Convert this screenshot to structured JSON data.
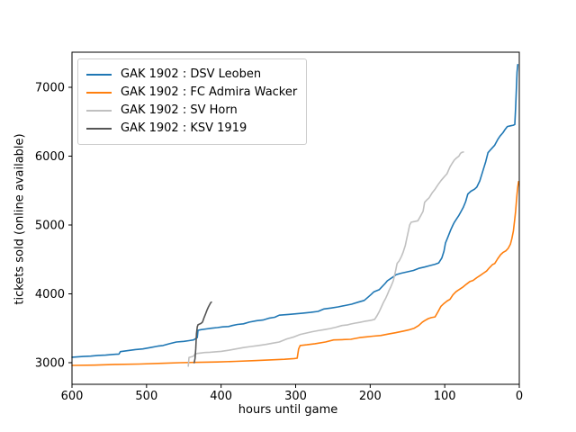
{
  "chart_data": {
    "type": "line",
    "title": "",
    "xlabel": "hours until game",
    "ylabel": "tickets sold (online available)",
    "x_ticks": [
      600,
      500,
      400,
      300,
      200,
      100,
      0
    ],
    "y_ticks": [
      3000,
      4000,
      5000,
      6000,
      7000
    ],
    "xlim": [
      600,
      0
    ],
    "ylim": [
      2686,
      7510
    ],
    "x_axis_reversed": true,
    "grid": false,
    "legend_position": "upper left",
    "series": [
      {
        "name": "GAK 1902 : DSV Leoben",
        "color": "#1f77b4",
        "points": [
          [
            600,
            3080
          ],
          [
            585,
            3090
          ],
          [
            575,
            3095
          ],
          [
            565,
            3105
          ],
          [
            555,
            3110
          ],
          [
            545,
            3120
          ],
          [
            537,
            3125
          ],
          [
            535,
            3160
          ],
          [
            525,
            3175
          ],
          [
            515,
            3190
          ],
          [
            505,
            3200
          ],
          [
            495,
            3220
          ],
          [
            485,
            3240
          ],
          [
            478,
            3250
          ],
          [
            468,
            3280
          ],
          [
            460,
            3300
          ],
          [
            450,
            3310
          ],
          [
            443,
            3320
          ],
          [
            437,
            3330
          ],
          [
            434,
            3350
          ],
          [
            432,
            3365
          ],
          [
            431,
            3470
          ],
          [
            427,
            3480
          ],
          [
            420,
            3490
          ],
          [
            413,
            3500
          ],
          [
            405,
            3510
          ],
          [
            398,
            3520
          ],
          [
            390,
            3525
          ],
          [
            385,
            3540
          ],
          [
            378,
            3555
          ],
          [
            370,
            3565
          ],
          [
            362,
            3590
          ],
          [
            352,
            3610
          ],
          [
            344,
            3620
          ],
          [
            336,
            3645
          ],
          [
            328,
            3660
          ],
          [
            322,
            3690
          ],
          [
            310,
            3700
          ],
          [
            300,
            3710
          ],
          [
            290,
            3720
          ],
          [
            280,
            3730
          ],
          [
            270,
            3745
          ],
          [
            262,
            3780
          ],
          [
            252,
            3795
          ],
          [
            243,
            3810
          ],
          [
            234,
            3830
          ],
          [
            225,
            3850
          ],
          [
            216,
            3880
          ],
          [
            208,
            3905
          ],
          [
            203,
            3950
          ],
          [
            199,
            3990
          ],
          [
            195,
            4030
          ],
          [
            188,
            4060
          ],
          [
            180,
            4150
          ],
          [
            177,
            4190
          ],
          [
            170,
            4240
          ],
          [
            165,
            4280
          ],
          [
            158,
            4300
          ],
          [
            150,
            4320
          ],
          [
            142,
            4340
          ],
          [
            135,
            4370
          ],
          [
            127,
            4390
          ],
          [
            120,
            4410
          ],
          [
            113,
            4430
          ],
          [
            108,
            4450
          ],
          [
            104,
            4520
          ],
          [
            101,
            4620
          ],
          [
            99,
            4740
          ],
          [
            96,
            4820
          ],
          [
            92,
            4930
          ],
          [
            89,
            5000
          ],
          [
            87,
            5040
          ],
          [
            84,
            5090
          ],
          [
            81,
            5140
          ],
          [
            78,
            5200
          ],
          [
            75,
            5260
          ],
          [
            72,
            5340
          ],
          [
            69,
            5450
          ],
          [
            65,
            5490
          ],
          [
            60,
            5520
          ],
          [
            57,
            5550
          ],
          [
            53,
            5640
          ],
          [
            49,
            5780
          ],
          [
            45,
            5920
          ],
          [
            42,
            6050
          ],
          [
            38,
            6100
          ],
          [
            33,
            6160
          ],
          [
            29,
            6240
          ],
          [
            26,
            6290
          ],
          [
            22,
            6340
          ],
          [
            19,
            6390
          ],
          [
            16,
            6430
          ],
          [
            12,
            6440
          ],
          [
            8,
            6450
          ],
          [
            6,
            6460
          ],
          [
            5,
            6700
          ],
          [
            4,
            6960
          ],
          [
            3,
            7220
          ],
          [
            2,
            7330
          ]
        ]
      },
      {
        "name": "GAK 1902 : FC Admira Wacker",
        "color": "#ff7f0e",
        "points": [
          [
            600,
            2960
          ],
          [
            570,
            2965
          ],
          [
            540,
            2975
          ],
          [
            510,
            2980
          ],
          [
            480,
            2990
          ],
          [
            455,
            3000
          ],
          [
            430,
            3005
          ],
          [
            405,
            3010
          ],
          [
            380,
            3020
          ],
          [
            355,
            3030
          ],
          [
            335,
            3040
          ],
          [
            315,
            3050
          ],
          [
            302,
            3060
          ],
          [
            298,
            3065
          ],
          [
            296,
            3200
          ],
          [
            294,
            3250
          ],
          [
            285,
            3260
          ],
          [
            274,
            3275
          ],
          [
            260,
            3300
          ],
          [
            249,
            3330
          ],
          [
            238,
            3335
          ],
          [
            226,
            3340
          ],
          [
            214,
            3365
          ],
          [
            205,
            3375
          ],
          [
            196,
            3385
          ],
          [
            186,
            3395
          ],
          [
            176,
            3415
          ],
          [
            166,
            3435
          ],
          [
            155,
            3460
          ],
          [
            147,
            3480
          ],
          [
            141,
            3500
          ],
          [
            135,
            3540
          ],
          [
            130,
            3590
          ],
          [
            127,
            3610
          ],
          [
            122,
            3640
          ],
          [
            118,
            3655
          ],
          [
            113,
            3665
          ],
          [
            109,
            3740
          ],
          [
            105,
            3820
          ],
          [
            101,
            3860
          ],
          [
            97,
            3895
          ],
          [
            93,
            3920
          ],
          [
            89,
            3985
          ],
          [
            85,
            4030
          ],
          [
            81,
            4060
          ],
          [
            76,
            4095
          ],
          [
            71,
            4140
          ],
          [
            66,
            4180
          ],
          [
            62,
            4195
          ],
          [
            57,
            4235
          ],
          [
            52,
            4270
          ],
          [
            48,
            4300
          ],
          [
            44,
            4330
          ],
          [
            40,
            4380
          ],
          [
            36,
            4425
          ],
          [
            33,
            4440
          ],
          [
            29,
            4510
          ],
          [
            25,
            4570
          ],
          [
            22,
            4600
          ],
          [
            18,
            4625
          ],
          [
            15,
            4660
          ],
          [
            12,
            4720
          ],
          [
            10,
            4800
          ],
          [
            8,
            4910
          ],
          [
            7,
            5000
          ],
          [
            6,
            5090
          ],
          [
            5,
            5200
          ],
          [
            4,
            5330
          ],
          [
            3,
            5450
          ],
          [
            2,
            5550
          ],
          [
            1,
            5630
          ]
        ]
      },
      {
        "name": "GAK 1902 : SV Horn",
        "color": "#c0c0c0",
        "points": [
          [
            444,
            2950
          ],
          [
            443,
            3075
          ],
          [
            440,
            3085
          ],
          [
            437,
            3095
          ],
          [
            435,
            3125
          ],
          [
            432,
            3135
          ],
          [
            428,
            3140
          ],
          [
            422,
            3148
          ],
          [
            415,
            3152
          ],
          [
            408,
            3158
          ],
          [
            400,
            3165
          ],
          [
            390,
            3180
          ],
          [
            380,
            3200
          ],
          [
            370,
            3220
          ],
          [
            360,
            3235
          ],
          [
            350,
            3250
          ],
          [
            340,
            3265
          ],
          [
            330,
            3285
          ],
          [
            322,
            3300
          ],
          [
            312,
            3345
          ],
          [
            302,
            3375
          ],
          [
            294,
            3410
          ],
          [
            286,
            3430
          ],
          [
            278,
            3450
          ],
          [
            270,
            3465
          ],
          [
            262,
            3480
          ],
          [
            254,
            3495
          ],
          [
            246,
            3515
          ],
          [
            238,
            3540
          ],
          [
            230,
            3550
          ],
          [
            226,
            3562
          ],
          [
            220,
            3575
          ],
          [
            214,
            3585
          ],
          [
            208,
            3600
          ],
          [
            202,
            3610
          ],
          [
            198,
            3618
          ],
          [
            194,
            3630
          ],
          [
            191,
            3680
          ],
          [
            188,
            3740
          ],
          [
            185,
            3810
          ],
          [
            182,
            3880
          ],
          [
            179,
            3940
          ],
          [
            177,
            3990
          ],
          [
            175,
            4040
          ],
          [
            172,
            4110
          ],
          [
            169,
            4190
          ],
          [
            166,
            4330
          ],
          [
            164,
            4440
          ],
          [
            161,
            4480
          ],
          [
            158,
            4545
          ],
          [
            156,
            4600
          ],
          [
            153,
            4700
          ],
          [
            151,
            4800
          ],
          [
            149,
            4900
          ],
          [
            147,
            5000
          ],
          [
            145,
            5040
          ],
          [
            141,
            5050
          ],
          [
            136,
            5062
          ],
          [
            132,
            5140
          ],
          [
            129,
            5200
          ],
          [
            127,
            5330
          ],
          [
            124,
            5365
          ],
          [
            121,
            5395
          ],
          [
            117,
            5465
          ],
          [
            113,
            5520
          ],
          [
            109,
            5585
          ],
          [
            105,
            5645
          ],
          [
            101,
            5695
          ],
          [
            97,
            5745
          ],
          [
            93,
            5845
          ],
          [
            90,
            5895
          ],
          [
            87,
            5945
          ],
          [
            84,
            5975
          ],
          [
            81,
            6000
          ],
          [
            79,
            6040
          ],
          [
            77,
            6055
          ],
          [
            75,
            6060
          ]
        ]
      },
      {
        "name": "GAK 1902 : KSV 1919",
        "color": "#555555",
        "points": [
          [
            436,
            3000
          ],
          [
            435,
            3060
          ],
          [
            434,
            3200
          ],
          [
            433,
            3420
          ],
          [
            432,
            3520
          ],
          [
            431,
            3550
          ],
          [
            429,
            3560
          ],
          [
            427,
            3570
          ],
          [
            425,
            3590
          ],
          [
            423,
            3650
          ],
          [
            421,
            3705
          ],
          [
            419,
            3760
          ],
          [
            417,
            3810
          ],
          [
            415,
            3850
          ],
          [
            414,
            3870
          ],
          [
            413,
            3880
          ]
        ]
      }
    ]
  }
}
